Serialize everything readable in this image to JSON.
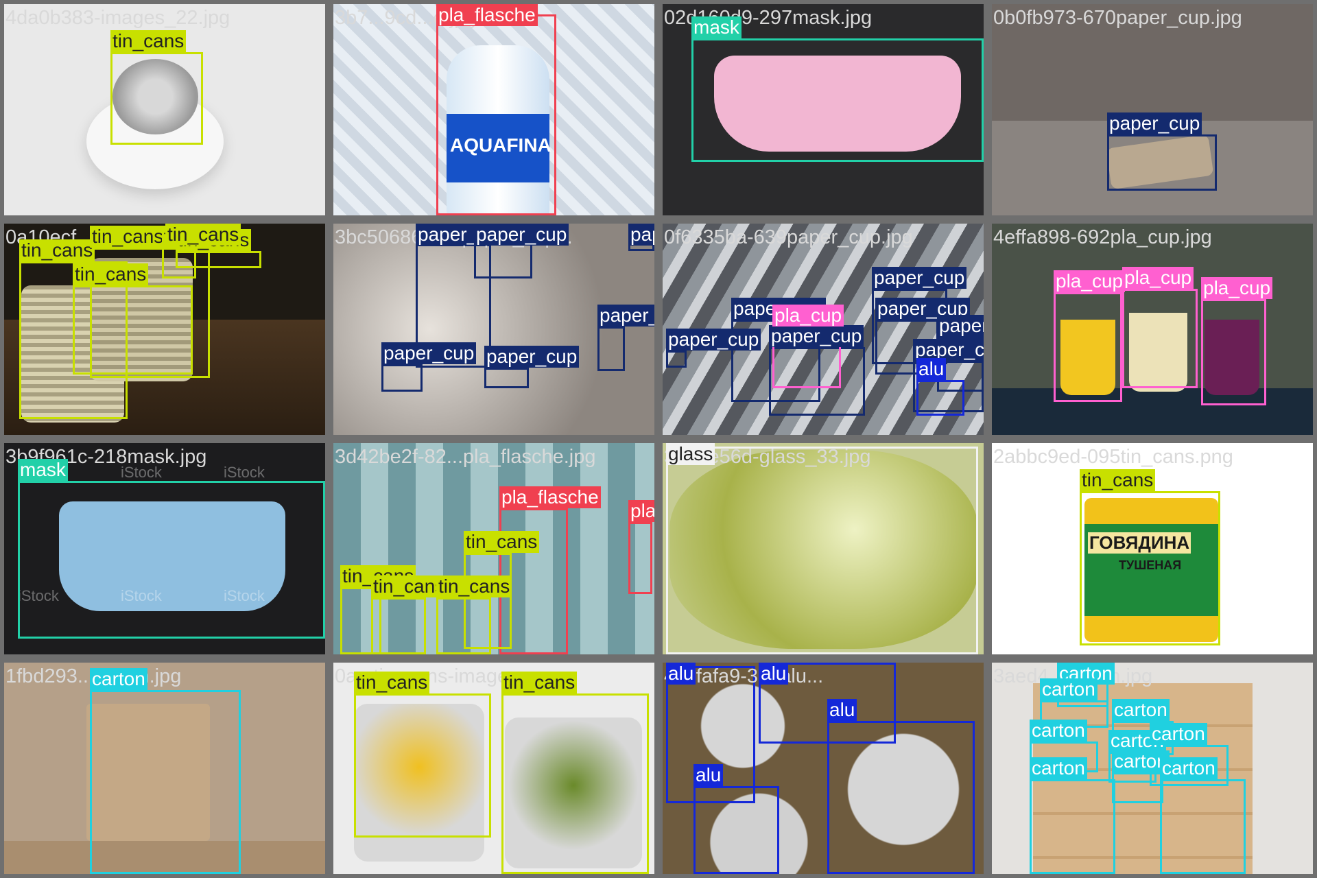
{
  "colors": {
    "tin_cans": "#c8e000",
    "pla_flasche": "#f04050",
    "mask": "#22d0a8",
    "paper_cup": "#142a6e",
    "pla_cup": "#ff60d0",
    "alu": "#1428d8",
    "glass": "#f2f2f2",
    "carton": "#20d0e0"
  },
  "tiles": [
    {
      "file": "4da0b383-images_22.jpg",
      "background": "#e9e9e9",
      "file_label_dark": false
    },
    {
      "file": "3b7...9cd...e.jpg",
      "background": "#dde3ea",
      "file_label_dark": false
    },
    {
      "file": "02d160d9-297mask.jpg",
      "background": "#2a2a2c",
      "file_label_dark": false
    },
    {
      "file": "0b0fb973-670paper_cup.jpg",
      "background": "#6f6864",
      "file_label_dark": false
    },
    {
      "file": "0a10ecf...8.jpg",
      "background": "#1e1a14",
      "file_label_dark": false
    },
    {
      "file": "3bc50686-555paper_cup...",
      "background": "#b9b4b0",
      "file_label_dark": false
    },
    {
      "file": "0f6335ba-639paper_cup.jpg",
      "background": "#6a6c70",
      "file_label_dark": false
    },
    {
      "file": "4effa898-692pla_cup.jpg",
      "background": "#4a5248",
      "file_label_dark": false
    },
    {
      "file": "3b9f961c-218mask.jpg",
      "background": "#1c1c1e",
      "file_label_dark": false
    },
    {
      "file": "3d42be2f-82...pla_flasche.jpg",
      "background": "#7fa6a8",
      "file_label_dark": false
    },
    {
      "file": "3b79e56d-glass_33.jpg",
      "background": "#c6cc94",
      "file_label_dark": false
    },
    {
      "file": "2abbc9ed-095tin_cans.png",
      "background": "#ffffff",
      "file_label_dark": false
    },
    {
      "file": "1fbd293...carton.jpg",
      "background": "#b5a089",
      "file_label_dark": false
    },
    {
      "file": "0a...tin_cans-image...",
      "background": "#ececec",
      "file_label_dark": false
    },
    {
      "file": "4c0fafa9-307alu...",
      "background": "#8b8478",
      "file_label_dark": false
    },
    {
      "file": "3aed4...carton.jpg",
      "background": "#e4e2df",
      "file_label_dark": false
    }
  ],
  "detections": [
    {
      "tile": 0,
      "label": "tin_cans"
    },
    {
      "tile": 1,
      "label": "pla_flasche"
    },
    {
      "tile": 2,
      "label": "mask"
    },
    {
      "tile": 3,
      "label": "paper_cup"
    },
    {
      "tile": 4,
      "label": "tin_cans"
    },
    {
      "tile": 4,
      "label": "tin_cans"
    },
    {
      "tile": 4,
      "label": "tin_cans"
    },
    {
      "tile": 4,
      "label": "tin_cans"
    },
    {
      "tile": 4,
      "label": "tin_cans"
    },
    {
      "tile": 4,
      "label": "tin_cans"
    },
    {
      "tile": 5,
      "label": "paper_cup"
    },
    {
      "tile": 5,
      "label": "paper_cup"
    },
    {
      "tile": 5,
      "label": "paper_cup"
    },
    {
      "tile": 5,
      "label": "paper_cup"
    },
    {
      "tile": 5,
      "label": "paper_cup"
    },
    {
      "tile": 5,
      "label": "paper_cup"
    },
    {
      "tile": 6,
      "label": "paper_cup"
    },
    {
      "tile": 6,
      "label": "paper_cup"
    },
    {
      "tile": 6,
      "label": "paper_cup"
    },
    {
      "tile": 6,
      "label": "paper_cup"
    },
    {
      "tile": 6,
      "label": "paper_cup"
    },
    {
      "tile": 6,
      "label": "paper_cup"
    },
    {
      "tile": 6,
      "label": "pla_cup"
    },
    {
      "tile": 6,
      "label": "alu"
    },
    {
      "tile": 6,
      "label": "paper_cup"
    },
    {
      "tile": 7,
      "label": "pla_cup"
    },
    {
      "tile": 7,
      "label": "pla_cup"
    },
    {
      "tile": 7,
      "label": "pla_cup"
    },
    {
      "tile": 8,
      "label": "mask"
    },
    {
      "tile": 9,
      "label": "pla_flasche"
    },
    {
      "tile": 9,
      "label": "pla_flasche"
    },
    {
      "tile": 9,
      "label": "tin_cans"
    },
    {
      "tile": 9,
      "label": "tin_cans"
    },
    {
      "tile": 9,
      "label": "tin_cans"
    },
    {
      "tile": 9,
      "label": "tin_cans"
    },
    {
      "tile": 10,
      "label": "glass"
    },
    {
      "tile": 11,
      "label": "tin_cans"
    },
    {
      "tile": 12,
      "label": "carton"
    },
    {
      "tile": 13,
      "label": "tin_cans"
    },
    {
      "tile": 13,
      "label": "tin_cans"
    },
    {
      "tile": 14,
      "label": "alu"
    },
    {
      "tile": 14,
      "label": "alu"
    },
    {
      "tile": 14,
      "label": "alu"
    },
    {
      "tile": 14,
      "label": "alu"
    },
    {
      "tile": 15,
      "label": "carton"
    },
    {
      "tile": 15,
      "label": "carton"
    },
    {
      "tile": 15,
      "label": "carton"
    },
    {
      "tile": 15,
      "label": "carton"
    },
    {
      "tile": 15,
      "label": "carton"
    },
    {
      "tile": 15,
      "label": "carton"
    },
    {
      "tile": 15,
      "label": "carton"
    },
    {
      "tile": 15,
      "label": "carton"
    },
    {
      "tile": 15,
      "label": "carton"
    }
  ],
  "tile_text": {
    "aquafina": "AQUAFINA",
    "govyadina": "ГОВЯДИНА",
    "tushenaya": "ТУШЕНАЯ",
    "istock": "iStock"
  }
}
